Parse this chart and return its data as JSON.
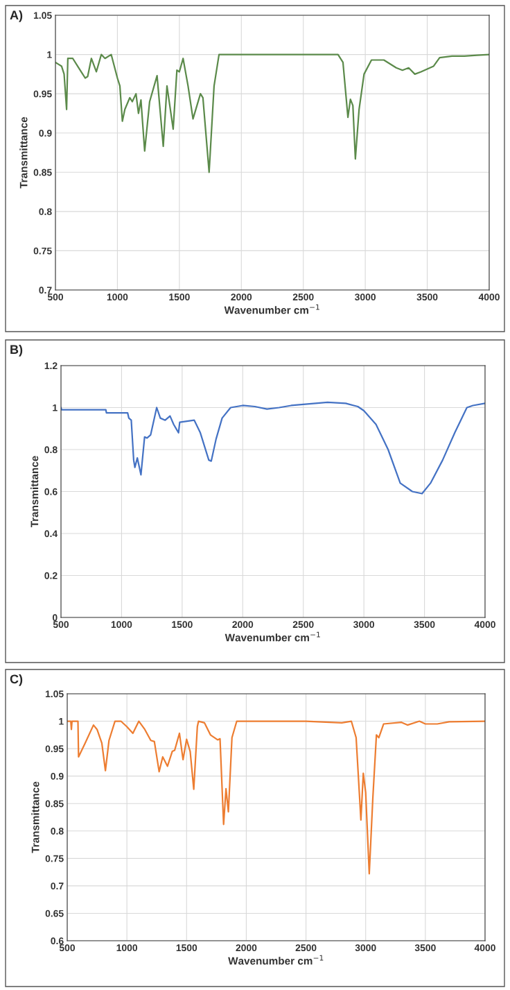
{
  "chart_data": [
    {
      "type": "line",
      "title": "A)",
      "xlabel": "Wavenumber cm$^{−1}$",
      "ylabel": "Transmittance",
      "xlim": [
        500,
        4000
      ],
      "ylim": [
        0.7,
        1.05
      ],
      "xticks": [
        500,
        1000,
        1500,
        2000,
        2500,
        3000,
        3500,
        4000
      ],
      "yticks": [
        0.7,
        0.75,
        0.8,
        0.85,
        0.9,
        0.95,
        1,
        1.05
      ],
      "grid": true,
      "series": [
        {
          "color": "#5b8a4a",
          "x": [
            500,
            520,
            550,
            570,
            590,
            600,
            640,
            680,
            720,
            740,
            760,
            790,
            830,
            870,
            900,
            950,
            1000,
            1020,
            1040,
            1060,
            1100,
            1120,
            1150,
            1170,
            1190,
            1220,
            1260,
            1320,
            1370,
            1400,
            1450,
            1480,
            1500,
            1530,
            1570,
            1610,
            1670,
            1690,
            1740,
            1780,
            1820,
            2000,
            2500,
            2780,
            2820,
            2860,
            2880,
            2900,
            2920,
            2950,
            2990,
            3050,
            3150,
            3250,
            3300,
            3350,
            3400,
            3450,
            3550,
            3600,
            3700,
            3800,
            3900,
            4000
          ],
          "values": [
            0.99,
            0.988,
            0.985,
            0.975,
            0.93,
            0.995,
            0.995,
            0.985,
            0.975,
            0.97,
            0.972,
            0.995,
            0.978,
            1.0,
            0.995,
            1.0,
            0.97,
            0.96,
            0.915,
            0.93,
            0.945,
            0.94,
            0.95,
            0.925,
            0.942,
            0.877,
            0.94,
            0.973,
            0.883,
            0.96,
            0.905,
            0.98,
            0.978,
            0.995,
            0.96,
            0.918,
            0.95,
            0.945,
            0.85,
            0.96,
            1.0,
            1.0,
            1.0,
            1.0,
            0.99,
            0.92,
            0.943,
            0.935,
            0.867,
            0.93,
            0.975,
            0.993,
            0.993,
            0.983,
            0.98,
            0.983,
            0.975,
            0.978,
            0.985,
            0.996,
            0.998,
            0.998,
            0.999,
            1.0
          ]
        }
      ]
    },
    {
      "type": "line",
      "title": "B)",
      "xlabel": "Wavenumber cm$^{−1}$",
      "ylabel": "Transmittance",
      "xlim": [
        500,
        4000
      ],
      "ylim": [
        0,
        1.2
      ],
      "xticks": [
        500,
        1000,
        1500,
        2000,
        2500,
        3000,
        3500,
        4000
      ],
      "yticks": [
        0,
        0.2,
        0.4,
        0.6,
        0.8,
        1,
        1.2
      ],
      "grid": true,
      "series": [
        {
          "color": "#4472c4",
          "x": [
            500,
            505,
            870,
            875,
            1050,
            1060,
            1080,
            1100,
            1110,
            1130,
            1160,
            1190,
            1210,
            1240,
            1290,
            1320,
            1360,
            1400,
            1430,
            1470,
            1480,
            1600,
            1650,
            1720,
            1740,
            1780,
            1830,
            1900,
            2000,
            2100,
            2200,
            2300,
            2400,
            2500,
            2700,
            2850,
            2950,
            3000,
            3100,
            3200,
            3300,
            3400,
            3480,
            3550,
            3650,
            3750,
            3850,
            3900,
            4000
          ],
          "values": [
            1.0,
            0.99,
            0.99,
            0.975,
            0.975,
            0.95,
            0.94,
            0.75,
            0.715,
            0.76,
            0.68,
            0.86,
            0.855,
            0.87,
            1.0,
            0.95,
            0.94,
            0.96,
            0.92,
            0.88,
            0.93,
            0.94,
            0.88,
            0.75,
            0.745,
            0.85,
            0.95,
            1.0,
            1.01,
            1.005,
            0.993,
            1.0,
            1.01,
            1.015,
            1.025,
            1.02,
            1.005,
            0.985,
            0.92,
            0.8,
            0.64,
            0.6,
            0.59,
            0.64,
            0.75,
            0.88,
            1.0,
            1.01,
            1.02
          ]
        }
      ]
    },
    {
      "type": "line",
      "title": "C)",
      "xlabel": "Wavenumber cm$^{−1}$",
      "ylabel": "Transmittance",
      "xlim": [
        500,
        4000
      ],
      "ylim": [
        0.6,
        1.05
      ],
      "xticks": [
        500,
        1000,
        1500,
        2000,
        2500,
        3000,
        3500,
        4000
      ],
      "yticks": [
        0.6,
        0.65,
        0.7,
        0.75,
        0.8,
        0.85,
        0.9,
        0.95,
        1,
        1.05
      ],
      "grid": true,
      "series": [
        {
          "color": "#ed7d31",
          "x": [
            500,
            530,
            535,
            540,
            590,
            595,
            650,
            720,
            750,
            790,
            820,
            850,
            900,
            950,
            1000,
            1050,
            1100,
            1150,
            1200,
            1230,
            1270,
            1300,
            1340,
            1380,
            1400,
            1440,
            1470,
            1500,
            1530,
            1560,
            1590,
            1600,
            1650,
            1700,
            1760,
            1780,
            1810,
            1830,
            1850,
            1880,
            1920,
            2500,
            2800,
            2880,
            2920,
            2960,
            2980,
            3000,
            3030,
            3060,
            3090,
            3110,
            3150,
            3300,
            3350,
            3450,
            3500,
            3600,
            3700,
            4000
          ],
          "values": [
            1.0,
            1.0,
            0.985,
            1.0,
            1.0,
            0.935,
            0.96,
            0.993,
            0.985,
            0.96,
            0.91,
            0.965,
            1.0,
            1.0,
            0.99,
            0.978,
            1.0,
            0.985,
            0.965,
            0.963,
            0.908,
            0.935,
            0.918,
            0.945,
            0.947,
            0.978,
            0.93,
            0.967,
            0.945,
            0.876,
            0.99,
            1.0,
            0.997,
            0.975,
            0.966,
            0.968,
            0.812,
            0.877,
            0.835,
            0.97,
            1.0,
            1.0,
            0.997,
            1.0,
            0.97,
            0.82,
            0.905,
            0.87,
            0.722,
            0.86,
            0.975,
            0.97,
            0.995,
            0.998,
            0.993,
            1.0,
            0.995,
            0.995,
            0.999,
            1.0
          ]
        }
      ]
    }
  ]
}
